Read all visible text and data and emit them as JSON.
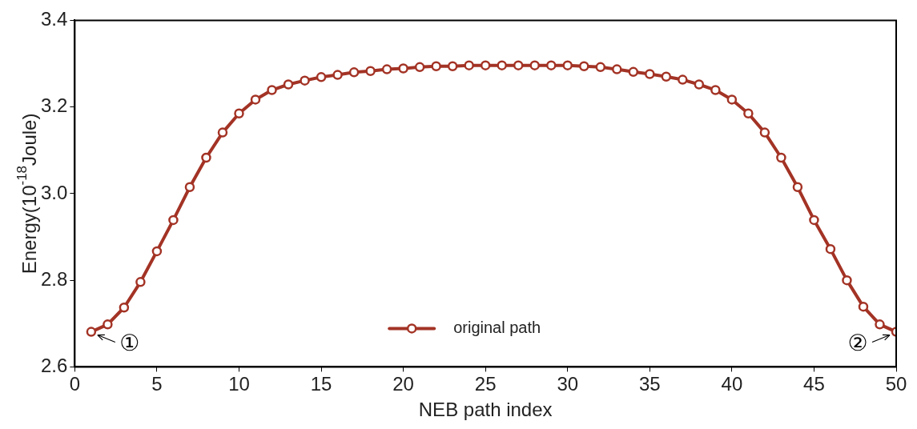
{
  "chart_data": {
    "type": "line",
    "xlabel": "NEB path index",
    "ylabel": "Energy(10$^{-18}$Joule)",
    "x": [
      1,
      2,
      3,
      4,
      5,
      6,
      7,
      8,
      9,
      10,
      11,
      12,
      13,
      14,
      15,
      16,
      17,
      18,
      19,
      20,
      21,
      22,
      23,
      24,
      25,
      26,
      27,
      28,
      29,
      30,
      31,
      32,
      33,
      34,
      35,
      36,
      37,
      38,
      39,
      40,
      41,
      42,
      43,
      44,
      45,
      46,
      47,
      48,
      49,
      50
    ],
    "series": [
      {
        "name": "original path",
        "color": "#a33325",
        "values": [
          2.681,
          2.698,
          2.737,
          2.796,
          2.867,
          2.939,
          3.015,
          3.083,
          3.141,
          3.185,
          3.217,
          3.239,
          3.252,
          3.261,
          3.269,
          3.274,
          3.28,
          3.283,
          3.287,
          3.289,
          3.292,
          3.294,
          3.294,
          3.296,
          3.296,
          3.296,
          3.296,
          3.296,
          3.296,
          3.296,
          3.294,
          3.292,
          3.287,
          3.281,
          3.276,
          3.27,
          3.263,
          3.252,
          3.239,
          3.217,
          3.185,
          3.141,
          3.083,
          3.015,
          2.939,
          2.872,
          2.8,
          2.739,
          2.698,
          2.681
        ]
      }
    ],
    "xlim": [
      0,
      50
    ],
    "xticks": [
      0,
      5,
      10,
      15,
      20,
      25,
      30,
      35,
      40,
      45,
      50
    ],
    "ylim": [
      2.6,
      3.4
    ],
    "yticks": [
      {
        "value": 2.6,
        "label": "2.6"
      },
      {
        "value": 2.8,
        "label": "2.8"
      },
      {
        "value": 3.0,
        "label": "3.0"
      },
      {
        "value": 3.2,
        "label": "3.2"
      },
      {
        "value": 3.4,
        "label": "3.4"
      }
    ],
    "annotations": [
      {
        "text": "①",
        "x": 1,
        "y": 2.681
      },
      {
        "text": "②",
        "x": 50,
        "y": 2.681
      }
    ],
    "legend": "bottom",
    "grid": false,
    "marker": "circle",
    "line_style": "solid"
  }
}
